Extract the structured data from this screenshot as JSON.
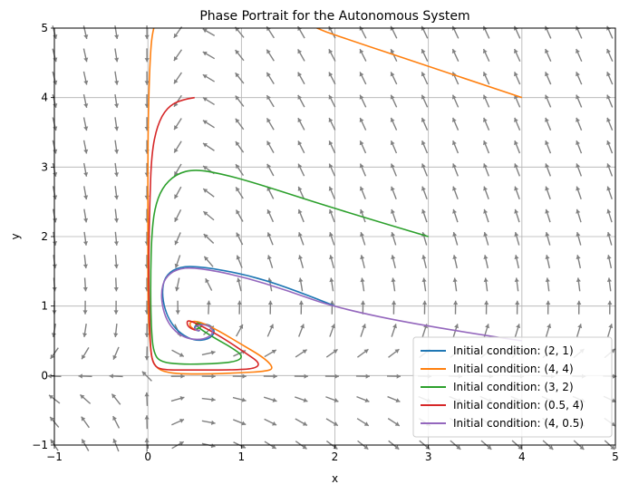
{
  "chart_data": {
    "type": "line",
    "title": "Phase Portrait for the Autonomous System",
    "xlabel": "x",
    "ylabel": "y",
    "xlim": [
      -1,
      5
    ],
    "ylim": [
      -1,
      5
    ],
    "xticks": [
      -1,
      0,
      1,
      2,
      3,
      4,
      5
    ],
    "yticks": [
      -1,
      0,
      1,
      2,
      3,
      4,
      5
    ],
    "grid": true,
    "legend_position": "lower-right",
    "vector_field": {
      "color": "#808080",
      "grid_step": 0.33
    },
    "series": [
      {
        "name": "Initial condition: (2, 1)",
        "color": "#1f77b4",
        "points": [
          [
            2,
            1
          ],
          [
            1.5,
            1.27
          ],
          [
            1.0,
            1.47
          ],
          [
            0.5,
            1.58
          ],
          [
            0.3,
            1.55
          ],
          [
            0.18,
            1.42
          ],
          [
            0.15,
            1.2
          ],
          [
            0.18,
            0.95
          ],
          [
            0.25,
            0.75
          ],
          [
            0.35,
            0.6
          ],
          [
            0.5,
            0.5
          ],
          [
            0.65,
            0.52
          ],
          [
            0.72,
            0.62
          ],
          [
            0.68,
            0.72
          ],
          [
            0.58,
            0.75
          ],
          [
            0.5,
            0.72
          ],
          [
            0.5,
            0.66
          ],
          [
            0.55,
            0.64
          ]
        ]
      },
      {
        "name": "Initial condition: (4, 4)",
        "color": "#ff7f0e",
        "points": [
          [
            4,
            4
          ],
          [
            3,
            4.45
          ],
          [
            2,
            4.9
          ],
          [
            1.8,
            5.0
          ],
          [
            1.5,
            5.2
          ],
          [
            0.5,
            5.5
          ],
          [
            0.15,
            5.3
          ],
          [
            0.05,
            5.0
          ],
          [
            0.02,
            4.5
          ],
          [
            0.0,
            3.5
          ],
          [
            0.0,
            2.0
          ],
          [
            0.0,
            1.0
          ],
          [
            0.02,
            0.5
          ],
          [
            0.05,
            0.15
          ],
          [
            0.2,
            0.03
          ],
          [
            0.6,
            0.02
          ],
          [
            1.0,
            0.04
          ],
          [
            1.25,
            0.06
          ],
          [
            1.35,
            0.1
          ],
          [
            1.25,
            0.25
          ],
          [
            1.0,
            0.45
          ],
          [
            0.75,
            0.65
          ],
          [
            0.55,
            0.78
          ],
          [
            0.45,
            0.78
          ],
          [
            0.45,
            0.7
          ],
          [
            0.52,
            0.65
          ]
        ]
      },
      {
        "name": "Initial condition: (3, 2)",
        "color": "#2ca02c",
        "points": [
          [
            3,
            2
          ],
          [
            2,
            2.4
          ],
          [
            1.2,
            2.75
          ],
          [
            0.8,
            2.9
          ],
          [
            0.5,
            2.97
          ],
          [
            0.3,
            2.9
          ],
          [
            0.15,
            2.7
          ],
          [
            0.07,
            2.4
          ],
          [
            0.04,
            2.0
          ],
          [
            0.03,
            1.5
          ],
          [
            0.03,
            1.0
          ],
          [
            0.04,
            0.6
          ],
          [
            0.06,
            0.35
          ],
          [
            0.12,
            0.2
          ],
          [
            0.35,
            0.16
          ],
          [
            0.7,
            0.17
          ],
          [
            0.95,
            0.2
          ],
          [
            1.02,
            0.28
          ],
          [
            0.9,
            0.4
          ],
          [
            0.7,
            0.55
          ],
          [
            0.55,
            0.68
          ],
          [
            0.5,
            0.75
          ],
          [
            0.55,
            0.76
          ],
          [
            0.58,
            0.7
          ],
          [
            0.5,
            0.66
          ]
        ]
      },
      {
        "name": "Initial condition: (0.5, 4)",
        "color": "#d62728",
        "points": [
          [
            0.5,
            4.0
          ],
          [
            0.35,
            3.97
          ],
          [
            0.2,
            3.85
          ],
          [
            0.1,
            3.6
          ],
          [
            0.04,
            3.2
          ],
          [
            0.02,
            2.5
          ],
          [
            0.01,
            1.8
          ],
          [
            0.01,
            1.2
          ],
          [
            0.02,
            0.7
          ],
          [
            0.03,
            0.35
          ],
          [
            0.06,
            0.15
          ],
          [
            0.15,
            0.08
          ],
          [
            0.5,
            0.08
          ],
          [
            0.9,
            0.08
          ],
          [
            1.15,
            0.1
          ],
          [
            1.2,
            0.18
          ],
          [
            1.05,
            0.32
          ],
          [
            0.85,
            0.5
          ],
          [
            0.65,
            0.66
          ],
          [
            0.5,
            0.76
          ],
          [
            0.42,
            0.8
          ],
          [
            0.42,
            0.72
          ],
          [
            0.48,
            0.66
          ],
          [
            0.55,
            0.65
          ]
        ]
      },
      {
        "name": "Initial condition: (4, 0.5)",
        "color": "#9467bd",
        "points": [
          [
            4,
            0.5
          ],
          [
            3,
            0.7
          ],
          [
            2,
            0.98
          ],
          [
            1.5,
            1.22
          ],
          [
            1.0,
            1.43
          ],
          [
            0.5,
            1.56
          ],
          [
            0.3,
            1.53
          ],
          [
            0.18,
            1.4
          ],
          [
            0.14,
            1.2
          ],
          [
            0.16,
            0.95
          ],
          [
            0.22,
            0.75
          ],
          [
            0.32,
            0.6
          ],
          [
            0.45,
            0.52
          ],
          [
            0.6,
            0.52
          ],
          [
            0.7,
            0.6
          ],
          [
            0.68,
            0.7
          ],
          [
            0.58,
            0.74
          ],
          [
            0.5,
            0.7
          ],
          [
            0.51,
            0.65
          ],
          [
            0.56,
            0.65
          ]
        ]
      }
    ]
  }
}
